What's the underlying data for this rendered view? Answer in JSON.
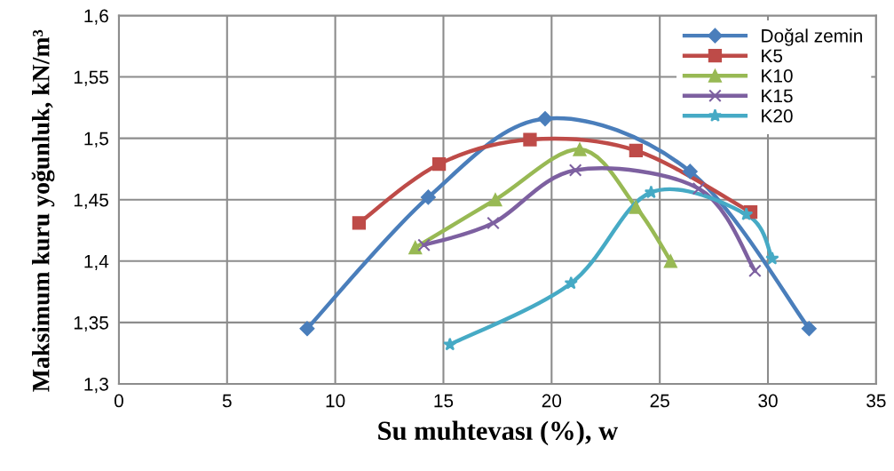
{
  "chart_data": {
    "type": "line",
    "xlabel": "Su muhtevası (%), w",
    "ylabel": "Maksimum kuru yoğunluk, kN/m³",
    "xlim": [
      0,
      35
    ],
    "xticks": [
      0,
      5,
      10,
      15,
      20,
      25,
      30,
      35
    ],
    "ylim": [
      1.3,
      1.6
    ],
    "yticks": [
      {
        "value": 1.3,
        "label": "1,3"
      },
      {
        "value": 1.35,
        "label": "1,35"
      },
      {
        "value": 1.4,
        "label": "1,4"
      },
      {
        "value": 1.45,
        "label": "1,45"
      },
      {
        "value": 1.5,
        "label": "1,5"
      },
      {
        "value": 1.55,
        "label": "1,55"
      },
      {
        "value": 1.6,
        "label": "1,6"
      }
    ],
    "grid": true,
    "legend": "top right",
    "line_style": "solid",
    "series": [
      {
        "name": "Doğal zemin",
        "color": "#4a7ebb",
        "marker": "diamond",
        "x": [
          8.7,
          14.3,
          19.7,
          26.4,
          31.9
        ],
        "values": [
          1.345,
          1.452,
          1.516,
          1.473,
          1.345
        ]
      },
      {
        "name": "K5",
        "color": "#be4b48",
        "marker": "square",
        "x": [
          11.1,
          14.8,
          19.0,
          23.9,
          29.2
        ],
        "values": [
          1.431,
          1.479,
          1.499,
          1.49,
          1.44
        ]
      },
      {
        "name": "K10",
        "color": "#98b954",
        "marker": "triangle",
        "x": [
          13.7,
          17.4,
          21.3,
          23.9,
          25.5
        ],
        "values": [
          1.411,
          1.45,
          1.491,
          1.444,
          1.4
        ]
      },
      {
        "name": "K15",
        "color": "#7d60a0",
        "marker": "cross",
        "x": [
          14.1,
          17.3,
          21.1,
          26.8,
          29.4
        ],
        "values": [
          1.413,
          1.431,
          1.474,
          1.459,
          1.392
        ]
      },
      {
        "name": "K20",
        "color": "#46aac5",
        "marker": "star",
        "x": [
          15.3,
          20.9,
          24.6,
          29.0,
          30.2
        ],
        "values": [
          1.332,
          1.382,
          1.456,
          1.438,
          1.402
        ]
      }
    ]
  }
}
